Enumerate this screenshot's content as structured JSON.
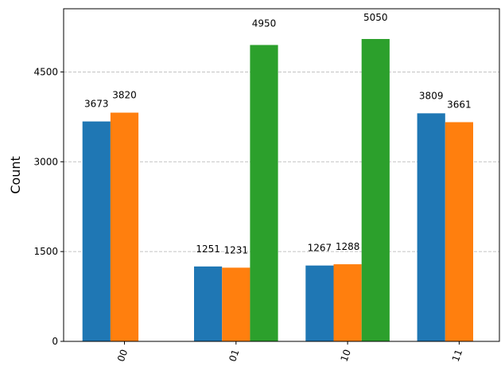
{
  "chart_data": {
    "type": "bar",
    "title": "",
    "xlabel": "",
    "ylabel": "Count",
    "categories": [
      "00",
      "01",
      "10",
      "11"
    ],
    "series": [
      {
        "name": "series-1",
        "color": "#1f77b4",
        "values": [
          3673,
          1251,
          1267,
          3809
        ]
      },
      {
        "name": "series-2",
        "color": "#ff7f0e",
        "values": [
          3820,
          1231,
          1288,
          3661
        ]
      },
      {
        "name": "series-3",
        "color": "#2ca02c",
        "values": [
          0,
          4950,
          5050,
          0
        ]
      }
    ],
    "yticks": [
      0,
      1500,
      3000,
      4500
    ],
    "ylim": [
      0,
      5555
    ],
    "grid": "horizontal dashed",
    "legend": "none"
  }
}
